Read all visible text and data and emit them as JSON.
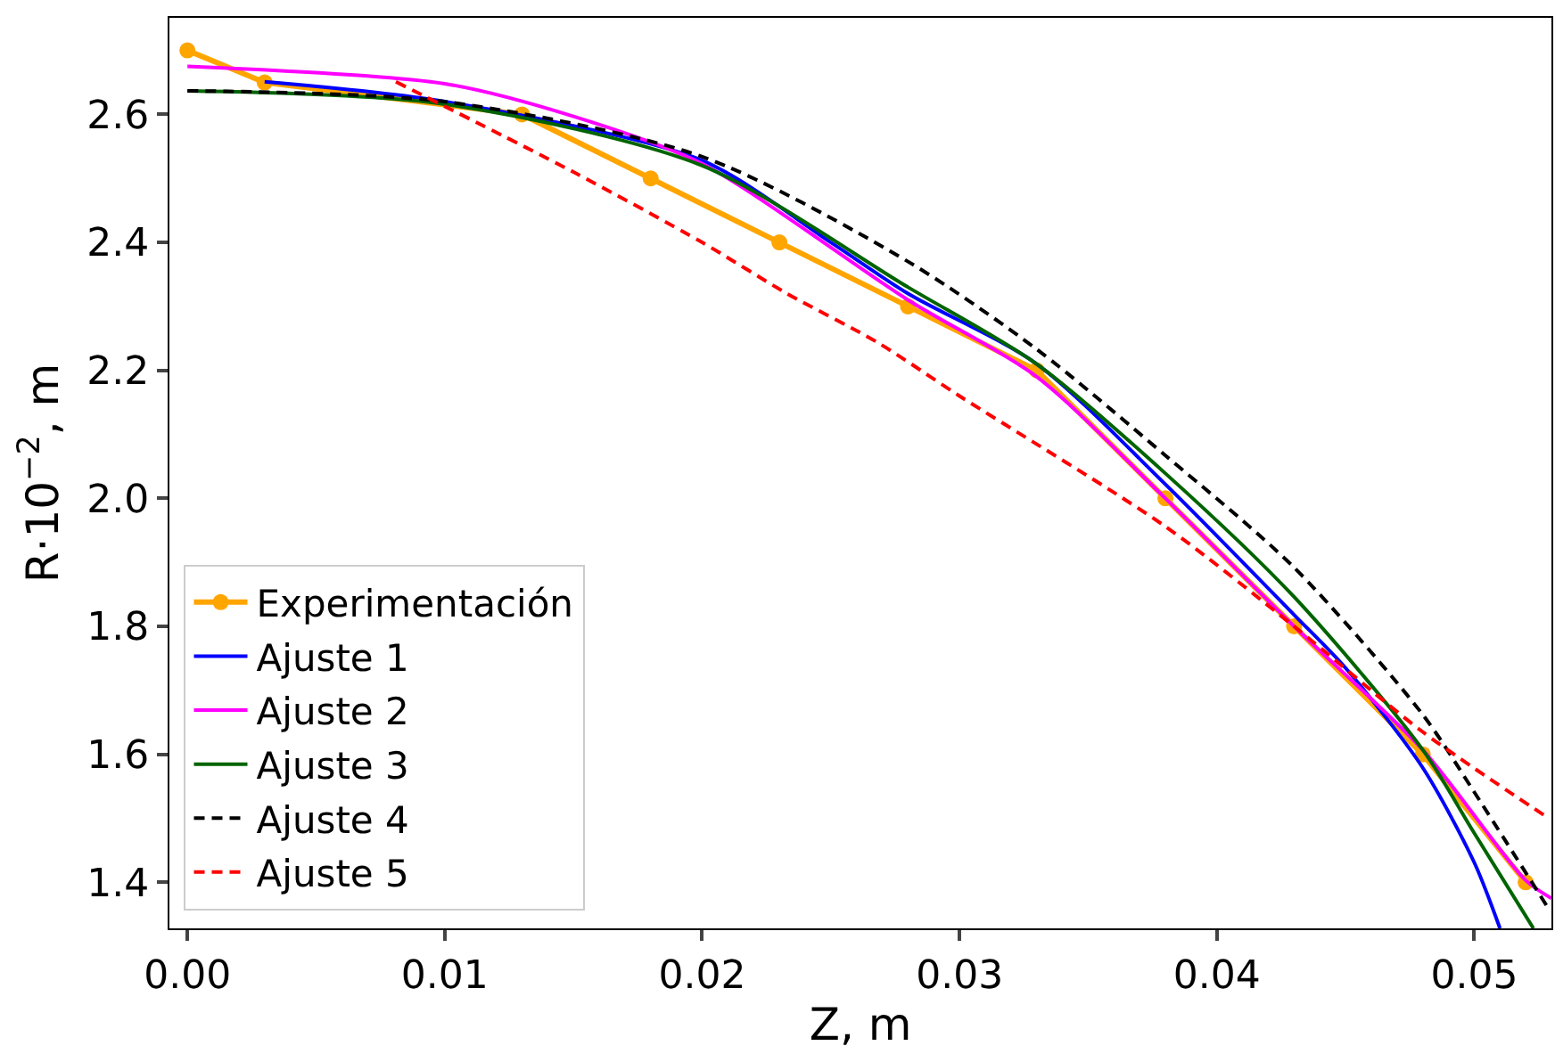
{
  "chart_data": {
    "type": "line",
    "xlabel": "Z, m",
    "ylabel": "R·10$^{−2}$, m",
    "xlim": [
      -0.0007,
      0.053
    ],
    "ylim": [
      1.328,
      2.751
    ],
    "xticks": [
      {
        "value": 0,
        "label": "0.00"
      },
      {
        "value": 0.01,
        "label": "0.01"
      },
      {
        "value": 0.02,
        "label": "0.02"
      },
      {
        "value": 0.03,
        "label": "0.03"
      },
      {
        "value": 0.04,
        "label": "0.04"
      },
      {
        "value": 0.05,
        "label": "0.05"
      }
    ],
    "yticks": [
      {
        "value": 1.4,
        "label": "1.4"
      },
      {
        "value": 1.6,
        "label": "1.6"
      },
      {
        "value": 1.8,
        "label": "1.8"
      },
      {
        "value": 2.0,
        "label": "2.0"
      },
      {
        "value": 2.2,
        "label": "2.2"
      },
      {
        "value": 2.4,
        "label": "2.4"
      },
      {
        "value": 2.6,
        "label": "2.6"
      }
    ],
    "grid": false,
    "legend": "bottom left",
    "series": [
      {
        "name": "Experimentación",
        "color": "#ffa500",
        "marker": "circle",
        "line_style": "solid",
        "x": [
          0,
          0.003,
          0.013,
          0.018,
          0.023,
          0.028,
          0.033,
          0.038,
          0.043,
          0.048,
          0.052
        ],
        "values": [
          2.7,
          2.65,
          2.6,
          2.5,
          2.4,
          2.3,
          2.2,
          2.0,
          1.8,
          1.6,
          1.4
        ]
      },
      {
        "name": "Ajuste 1",
        "color": "#0000ff",
        "marker": "none",
        "line_style": "solid",
        "x": [
          0.003,
          0.01,
          0.02,
          0.025,
          0.028,
          0.033,
          0.038,
          0.043,
          0.045,
          0.048,
          0.05,
          0.051
        ],
        "values": [
          2.651,
          2.62,
          2.528,
          2.4,
          2.32,
          2.21,
          2.022,
          1.818,
          1.735,
          1.579,
          1.431,
          1.328
        ]
      },
      {
        "name": "Ajuste 2",
        "color": "#ff00ff",
        "marker": "none",
        "line_style": "solid",
        "x": [
          0,
          0.01,
          0.015,
          0.02,
          0.028,
          0.033,
          0.038,
          0.043,
          0.048,
          0.052,
          0.053
        ],
        "values": [
          2.675,
          2.648,
          2.597,
          2.523,
          2.31,
          2.19,
          2.0,
          1.8,
          1.607,
          1.403,
          1.375
        ]
      },
      {
        "name": "Ajuste 3",
        "color": "#006400",
        "marker": "none",
        "line_style": "solid",
        "x": [
          0,
          0.01,
          0.02,
          0.028,
          0.033,
          0.038,
          0.043,
          0.048,
          0.05,
          0.0523
        ],
        "values": [
          2.637,
          2.616,
          2.52,
          2.33,
          2.21,
          2.039,
          1.846,
          1.607,
          1.477,
          1.328
        ]
      },
      {
        "name": "Ajuste 4",
        "color": "#000000",
        "marker": "none",
        "line_style": "dashed",
        "x": [
          0,
          0.01,
          0.02,
          0.028,
          0.033,
          0.038,
          0.043,
          0.048,
          0.05,
          0.0529
        ],
        "values": [
          2.637,
          2.62,
          2.534,
          2.37,
          2.233,
          2.067,
          1.892,
          1.662,
          1.541,
          1.358
        ]
      },
      {
        "name": "Ajuste 5",
        "color": "#ff0000",
        "marker": "none",
        "line_style": "dashed",
        "x": [
          0.0081,
          0.015,
          0.02,
          0.0233,
          0.0268,
          0.03,
          0.038,
          0.043,
          0.048,
          0.0529
        ],
        "values": [
          2.651,
          2.51,
          2.4,
          2.32,
          2.244,
          2.16,
          1.956,
          1.8,
          1.635,
          1.5
        ]
      }
    ]
  }
}
